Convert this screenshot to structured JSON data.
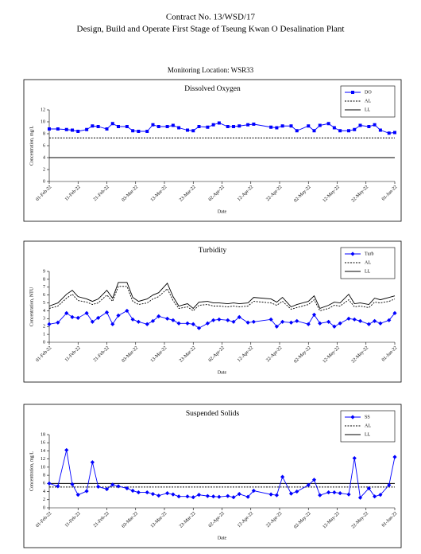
{
  "header": {
    "contract": "Contract No. 13/WSD/17",
    "project": "Design, Build and Operate First Stage of Tseung Kwan O Desalination Plant",
    "location": "Monitoring Location: WSR33"
  },
  "chart_data": [
    {
      "type": "line",
      "title": "Dissolved Oxygen",
      "x_label": "Date",
      "y_label": "Concentration, mg/L",
      "x": [
        "01-Feb-22",
        "04-Feb-22",
        "07-Feb-22",
        "09-Feb-22",
        "11-Feb-22",
        "14-Feb-22",
        "16-Feb-22",
        "18-Feb-22",
        "21-Feb-22",
        "23-Feb-22",
        "25-Feb-22",
        "28-Feb-22",
        "02-Mar-22",
        "04-Mar-22",
        "07-Mar-22",
        "09-Mar-22",
        "11-Mar-22",
        "14-Mar-22",
        "16-Mar-22",
        "18-Mar-22",
        "21-Mar-22",
        "23-Mar-22",
        "25-Mar-22",
        "28-Mar-22",
        "30-Mar-22",
        "01-Apr-22",
        "04-Apr-22",
        "06-Apr-22",
        "08-Apr-22",
        "11-Apr-22",
        "13-Apr-22",
        "19-Apr-22",
        "21-Apr-22",
        "23-Apr-22",
        "26-Apr-22",
        "28-Apr-22",
        "02-May-22",
        "04-May-22",
        "06-May-22",
        "09-May-22",
        "11-May-22",
        "13-May-22",
        "16-May-22",
        "18-May-22",
        "20-May-22",
        "23-May-22",
        "25-May-22",
        "27-May-22",
        "30-May-22",
        "01-Jun-22"
      ],
      "series": [
        {
          "name": "DO",
          "color": "#0000ff",
          "marker": "square",
          "style": "solid",
          "values": [
            8.8,
            8.8,
            8.7,
            8.6,
            8.4,
            8.7,
            9.3,
            9.2,
            8.8,
            9.7,
            9.2,
            9.2,
            8.5,
            8.4,
            8.4,
            9.5,
            9.2,
            9.2,
            9.4,
            9.0,
            8.6,
            8.5,
            9.2,
            9.1,
            9.5,
            9.8,
            9.2,
            9.2,
            9.3,
            9.5,
            9.6,
            9.1,
            9.0,
            9.3,
            9.3,
            8.5,
            9.3,
            8.5,
            9.4,
            9.7,
            9.0,
            8.5,
            8.5,
            8.7,
            9.4,
            9.2,
            9.5,
            8.6,
            8.1,
            8.2
          ]
        }
      ],
      "hlines": [
        {
          "name": "AL",
          "value": 7.3,
          "color": "#000000",
          "style": "dashed"
        },
        {
          "name": "LL",
          "value": 4,
          "color": "#000000",
          "style": "solid"
        }
      ],
      "xlim": [
        "01-Feb-22",
        "01-Jun-22"
      ],
      "xticks": [
        "01-Feb-22",
        "11-Feb-22",
        "21-Feb-22",
        "03-Mar-22",
        "13-Mar-22",
        "23-Mar-22",
        "02-Apr-22",
        "12-Apr-22",
        "22-Apr-22",
        "02-May-22",
        "12-May-22",
        "22-May-22",
        "01-Jun-22"
      ],
      "ylim": [
        0,
        12
      ],
      "yticks": [
        0,
        2,
        4,
        6,
        8,
        10,
        12
      ],
      "legend": "upper right"
    },
    {
      "type": "line",
      "title": "Turbidity",
      "x_label": "Date",
      "y_label": "Concentration, NTU",
      "x": [
        "01-Feb-22",
        "04-Feb-22",
        "07-Feb-22",
        "09-Feb-22",
        "11-Feb-22",
        "14-Feb-22",
        "16-Feb-22",
        "18-Feb-22",
        "21-Feb-22",
        "23-Feb-22",
        "25-Feb-22",
        "28-Feb-22",
        "02-Mar-22",
        "04-Mar-22",
        "07-Mar-22",
        "09-Mar-22",
        "11-Mar-22",
        "14-Mar-22",
        "16-Mar-22",
        "18-Mar-22",
        "21-Mar-22",
        "23-Mar-22",
        "25-Mar-22",
        "28-Mar-22",
        "30-Mar-22",
        "01-Apr-22",
        "04-Apr-22",
        "06-Apr-22",
        "08-Apr-22",
        "11-Apr-22",
        "13-Apr-22",
        "19-Apr-22",
        "21-Apr-22",
        "23-Apr-22",
        "26-Apr-22",
        "28-Apr-22",
        "02-May-22",
        "04-May-22",
        "06-May-22",
        "09-May-22",
        "11-May-22",
        "13-May-22",
        "16-May-22",
        "18-May-22",
        "20-May-22",
        "23-May-22",
        "25-May-22",
        "27-May-22",
        "30-May-22",
        "01-Jun-22"
      ],
      "series": [
        {
          "name": "Turb",
          "color": "#0000ff",
          "marker": "diamond",
          "style": "solid",
          "values": [
            2.3,
            2.5,
            3.7,
            3.2,
            3.1,
            3.7,
            2.6,
            3.1,
            3.8,
            2.3,
            3.4,
            4.0,
            2.9,
            2.6,
            2.3,
            2.7,
            3.3,
            3.0,
            2.8,
            2.4,
            2.4,
            2.3,
            1.8,
            2.4,
            2.8,
            2.9,
            2.8,
            2.6,
            3.2,
            2.5,
            2.6,
            2.9,
            2.0,
            2.6,
            2.5,
            2.7,
            2.3,
            3.5,
            2.4,
            2.6,
            2.0,
            2.4,
            3.0,
            2.9,
            2.7,
            2.3,
            2.7,
            2.4,
            2.8,
            3.7
          ]
        },
        {
          "name": "AL",
          "color": "#000000",
          "style": "dashed",
          "values": [
            4.3,
            4.6,
            5.6,
            6.1,
            5.3,
            5.1,
            4.8,
            5.0,
            6.0,
            5.2,
            7.1,
            7.1,
            5.2,
            4.8,
            5.0,
            5.5,
            5.8,
            6.8,
            5.3,
            4.3,
            4.5,
            4.0,
            4.7,
            4.8,
            4.6,
            4.6,
            4.5,
            4.6,
            4.5,
            4.6,
            5.2,
            5.0,
            4.7,
            5.2,
            4.2,
            4.4,
            4.8,
            5.4,
            4.0,
            4.3,
            4.7,
            4.6,
            5.4,
            4.5,
            4.6,
            4.4,
            5.1,
            5.0,
            5.2,
            5.5
          ]
        },
        {
          "name": "LL",
          "color": "#000000",
          "style": "solid",
          "values": [
            4.6,
            5.0,
            6.1,
            6.6,
            5.8,
            5.5,
            5.2,
            5.5,
            6.6,
            5.6,
            7.6,
            7.6,
            5.7,
            5.2,
            5.5,
            6.0,
            6.3,
            7.5,
            5.8,
            4.6,
            4.9,
            4.3,
            5.1,
            5.2,
            5.0,
            5.0,
            4.9,
            5.0,
            4.9,
            5.0,
            5.7,
            5.5,
            5.1,
            5.7,
            4.5,
            4.8,
            5.2,
            5.9,
            4.3,
            4.7,
            5.1,
            5.0,
            6.1,
            4.9,
            5.0,
            4.8,
            5.6,
            5.4,
            5.7,
            5.9
          ]
        }
      ],
      "xlim": [
        "01-Feb-22",
        "01-Jun-22"
      ],
      "xticks": [
        "01-Feb-22",
        "11-Feb-22",
        "21-Feb-22",
        "03-Mar-22",
        "13-Mar-22",
        "23-Mar-22",
        "02-Apr-22",
        "12-Apr-22",
        "22-Apr-22",
        "02-May-22",
        "12-May-22",
        "22-May-22",
        "01-Jun-22"
      ],
      "ylim": [
        0,
        9
      ],
      "yticks": [
        0,
        1,
        2,
        3,
        4,
        5,
        6,
        7,
        8,
        9
      ],
      "legend": "upper right"
    },
    {
      "type": "line",
      "title": "Suspended Solids",
      "x_label": "Date",
      "y_label": "Concentration, mg/L",
      "x": [
        "01-Feb-22",
        "04-Feb-22",
        "07-Feb-22",
        "09-Feb-22",
        "11-Feb-22",
        "14-Feb-22",
        "16-Feb-22",
        "18-Feb-22",
        "21-Feb-22",
        "23-Feb-22",
        "25-Feb-22",
        "28-Feb-22",
        "02-Mar-22",
        "04-Mar-22",
        "07-Mar-22",
        "09-Mar-22",
        "11-Mar-22",
        "14-Mar-22",
        "16-Mar-22",
        "18-Mar-22",
        "21-Mar-22",
        "23-Mar-22",
        "25-Mar-22",
        "28-Mar-22",
        "30-Mar-22",
        "01-Apr-22",
        "04-Apr-22",
        "06-Apr-22",
        "08-Apr-22",
        "11-Apr-22",
        "13-Apr-22",
        "19-Apr-22",
        "21-Apr-22",
        "23-Apr-22",
        "26-Apr-22",
        "28-Apr-22",
        "02-May-22",
        "04-May-22",
        "06-May-22",
        "09-May-22",
        "11-May-22",
        "13-May-22",
        "16-May-22",
        "18-May-22",
        "20-May-22",
        "23-May-22",
        "25-May-22",
        "27-May-22",
        "30-May-22",
        "01-Jun-22"
      ],
      "series": [
        {
          "name": "SS",
          "color": "#0000ff",
          "marker": "diamond",
          "style": "solid",
          "values": [
            6.0,
            5.3,
            14.2,
            5.8,
            3.2,
            4.1,
            11.2,
            5.2,
            4.6,
            5.7,
            5.3,
            4.8,
            4.2,
            3.8,
            3.8,
            3.4,
            3.0,
            3.6,
            3.3,
            2.8,
            2.8,
            2.6,
            3.2,
            2.9,
            2.8,
            2.7,
            2.9,
            2.6,
            3.4,
            2.7,
            4.2,
            3.3,
            3.1,
            7.6,
            3.5,
            4.0,
            5.6,
            6.9,
            3.1,
            3.8,
            3.8,
            3.6,
            3.3,
            12.2,
            2.5,
            4.8,
            2.8,
            3.2,
            5.6,
            12.5
          ]
        }
      ],
      "hlines": [
        {
          "name": "AL",
          "value": 5.1,
          "color": "#000000",
          "style": "dashed"
        },
        {
          "name": "LL",
          "value": 6.0,
          "color": "#000000",
          "style": "solid"
        }
      ],
      "xlim": [
        "01-Feb-22",
        "01-Jun-22"
      ],
      "xticks": [
        "01-Feb-22",
        "11-Feb-22",
        "21-Feb-22",
        "03-Mar-22",
        "13-Mar-22",
        "23-Mar-22",
        "02-Apr-22",
        "12-Apr-22",
        "22-Apr-22",
        "02-May-22",
        "12-May-22",
        "22-May-22",
        "01-Jun-22"
      ],
      "ylim": [
        0,
        18
      ],
      "yticks": [
        0,
        2,
        4,
        6,
        8,
        10,
        12,
        14,
        16,
        18
      ],
      "legend": "upper right"
    }
  ]
}
